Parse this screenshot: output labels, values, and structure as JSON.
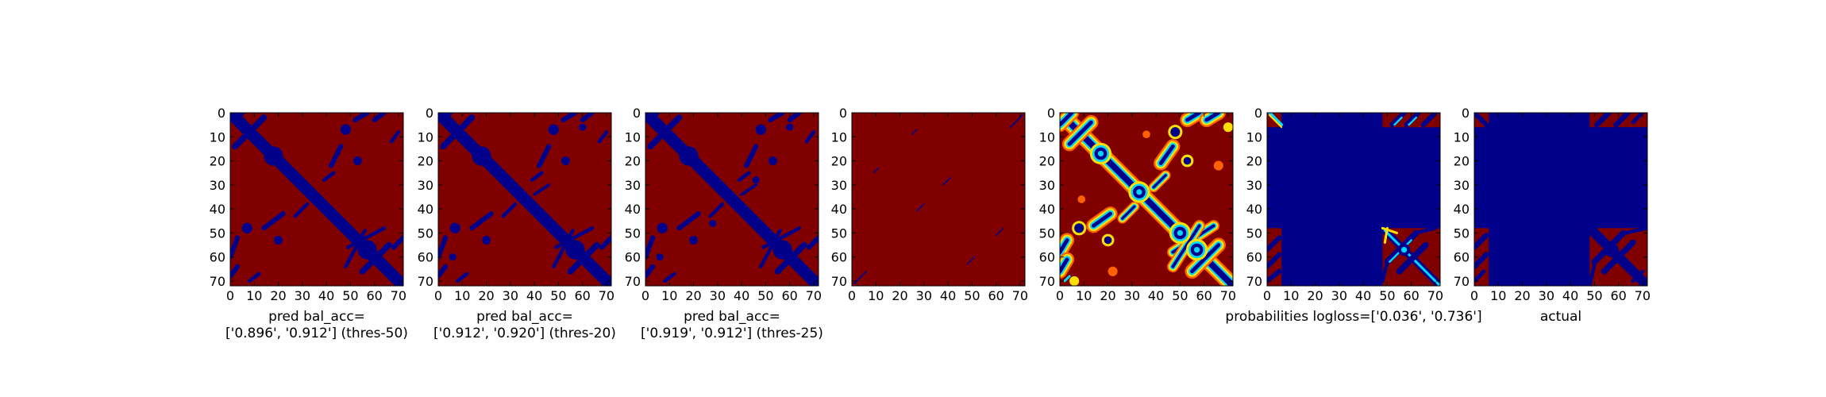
{
  "chart_data": [
    {
      "type": "heatmap",
      "xticks": [
        0,
        10,
        20,
        30,
        40,
        50,
        60,
        70
      ],
      "yticks": [
        0,
        10,
        20,
        30,
        40,
        50,
        60,
        70
      ],
      "xlim": [
        0,
        72
      ],
      "ylim": [
        72,
        0
      ],
      "colormap": "jet-binary",
      "xlabel": [
        "pred bal_acc=",
        "['0.896', '0.912'] (thres-50)"
      ],
      "values_desc": [
        "bands"
      ]
    },
    {
      "type": "heatmap",
      "xticks": [
        0,
        10,
        20,
        30,
        40,
        50,
        60,
        70
      ],
      "yticks": [
        0,
        10,
        20,
        30,
        40,
        50,
        60,
        70
      ],
      "xlim": [
        0,
        72
      ],
      "ylim": [
        72,
        0
      ],
      "colormap": "jet-binary",
      "xlabel": [
        "pred bal_acc=",
        "['0.912', '0.920'] (thres-20)"
      ]
    },
    {
      "type": "heatmap",
      "xticks": [
        0,
        10,
        20,
        30,
        40,
        50,
        60,
        70
      ],
      "yticks": [
        0,
        10,
        20,
        30,
        40,
        50,
        60,
        70
      ],
      "xlim": [
        0,
        72
      ],
      "ylim": [
        72,
        0
      ],
      "colormap": "jet-binary",
      "xlabel": [
        "pred bal_acc=",
        "['0.919', '0.912'] (thres-25)"
      ]
    },
    {
      "type": "heatmap",
      "xticks": [
        0,
        10,
        20,
        30,
        40,
        50,
        60,
        70
      ],
      "yticks": [
        0,
        10,
        20,
        30,
        40,
        50,
        60,
        70
      ],
      "xlim": [
        0,
        72
      ],
      "ylim": [
        72,
        0
      ],
      "colormap": "jet-binary",
      "xlabel": []
    },
    {
      "type": "heatmap",
      "xticks": [
        0,
        10,
        20,
        30,
        40,
        50,
        60,
        70
      ],
      "yticks": [
        0,
        10,
        20,
        30,
        40,
        50,
        60,
        70
      ],
      "xlim": [
        0,
        72
      ],
      "ylim": [
        72,
        0
      ],
      "colormap": "jet",
      "xlabel": []
    },
    {
      "type": "heatmap",
      "xticks": [
        0,
        10,
        20,
        30,
        40,
        50,
        60,
        70
      ],
      "yticks": [
        0,
        10,
        20,
        30,
        40,
        50,
        60,
        70
      ],
      "xlim": [
        0,
        72
      ],
      "ylim": [
        72,
        0
      ],
      "colormap": "jet",
      "xlabel": [
        "probabilities logloss=['0.036', '0.736']"
      ]
    },
    {
      "type": "heatmap",
      "xticks": [
        0,
        10,
        20,
        30,
        40,
        50,
        60,
        70
      ],
      "yticks": [
        0,
        10,
        20,
        30,
        40,
        50,
        60,
        70
      ],
      "xlim": [
        0,
        72
      ],
      "ylim": [
        72,
        0
      ],
      "colormap": "jet-binary",
      "xlabel": [
        "actual"
      ]
    }
  ],
  "colors": {
    "background_red": "#800000",
    "contact_blue": "#00008b",
    "cyan": "#00d8ff",
    "yellow": "#ffe000",
    "orange": "#ff6000",
    "axis": "#000000"
  }
}
